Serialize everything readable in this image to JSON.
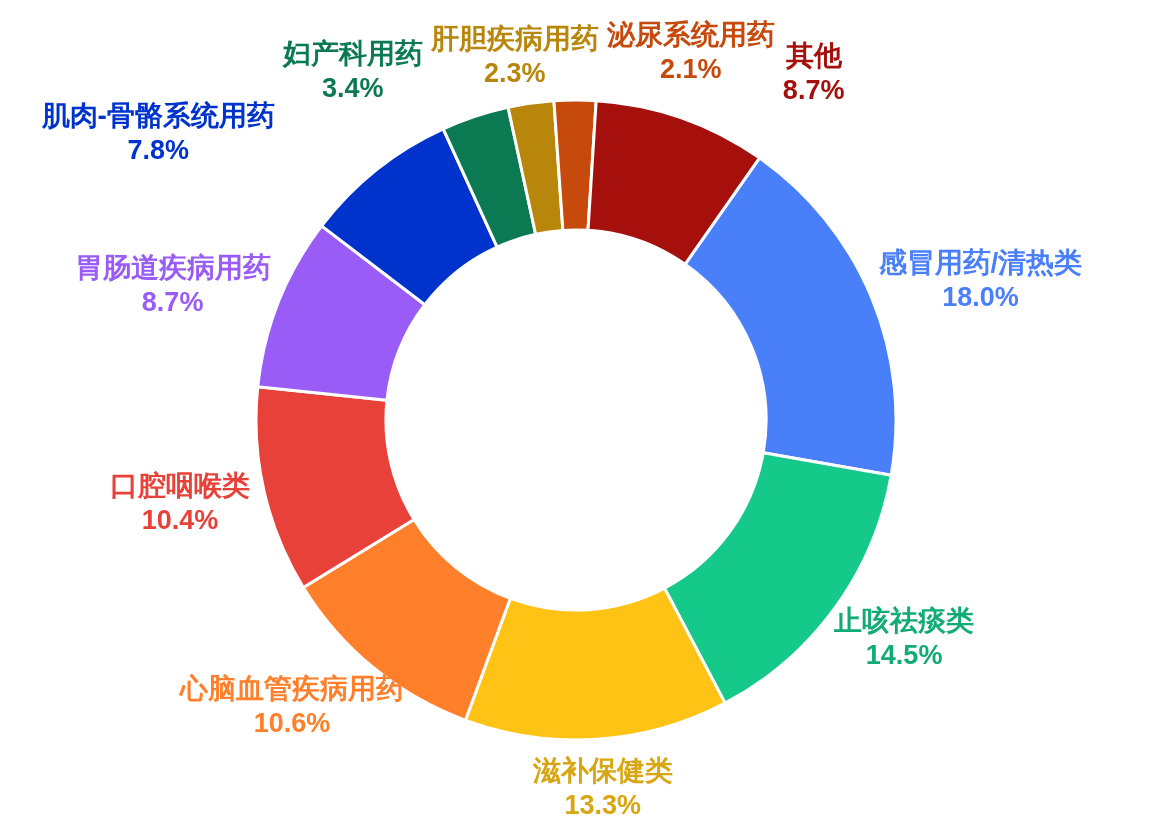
{
  "chart_data": {
    "type": "donut",
    "categories": [
      "感冒用药/清热类",
      "止咳祛痰类",
      "滋补保健类",
      "心脑血管疾病用药",
      "口腔咽喉类",
      "胃肠道疾病用药",
      "肌肉-骨骼系统用药",
      "妇产科用药",
      "肝胆疾病用药",
      "泌尿系统用药",
      "其他"
    ],
    "values": [
      18.0,
      14.5,
      13.3,
      10.6,
      10.4,
      8.7,
      7.8,
      3.4,
      2.3,
      2.1,
      8.7
    ],
    "value_labels": [
      "18.0%",
      "14.5%",
      "13.3%",
      "10.6%",
      "10.4%",
      "8.7%",
      "7.8%",
      "3.4%",
      "2.3%",
      "2.1%",
      "8.7%"
    ],
    "colors": [
      "#4a7ffa",
      "#15c98a",
      "#ffc315",
      "#ff7f2a",
      "#e8413a",
      "#9a5cf7",
      "#0033cc",
      "#0b7a52",
      "#b8860b",
      "#c64a0c",
      "#a5100c"
    ]
  }
}
